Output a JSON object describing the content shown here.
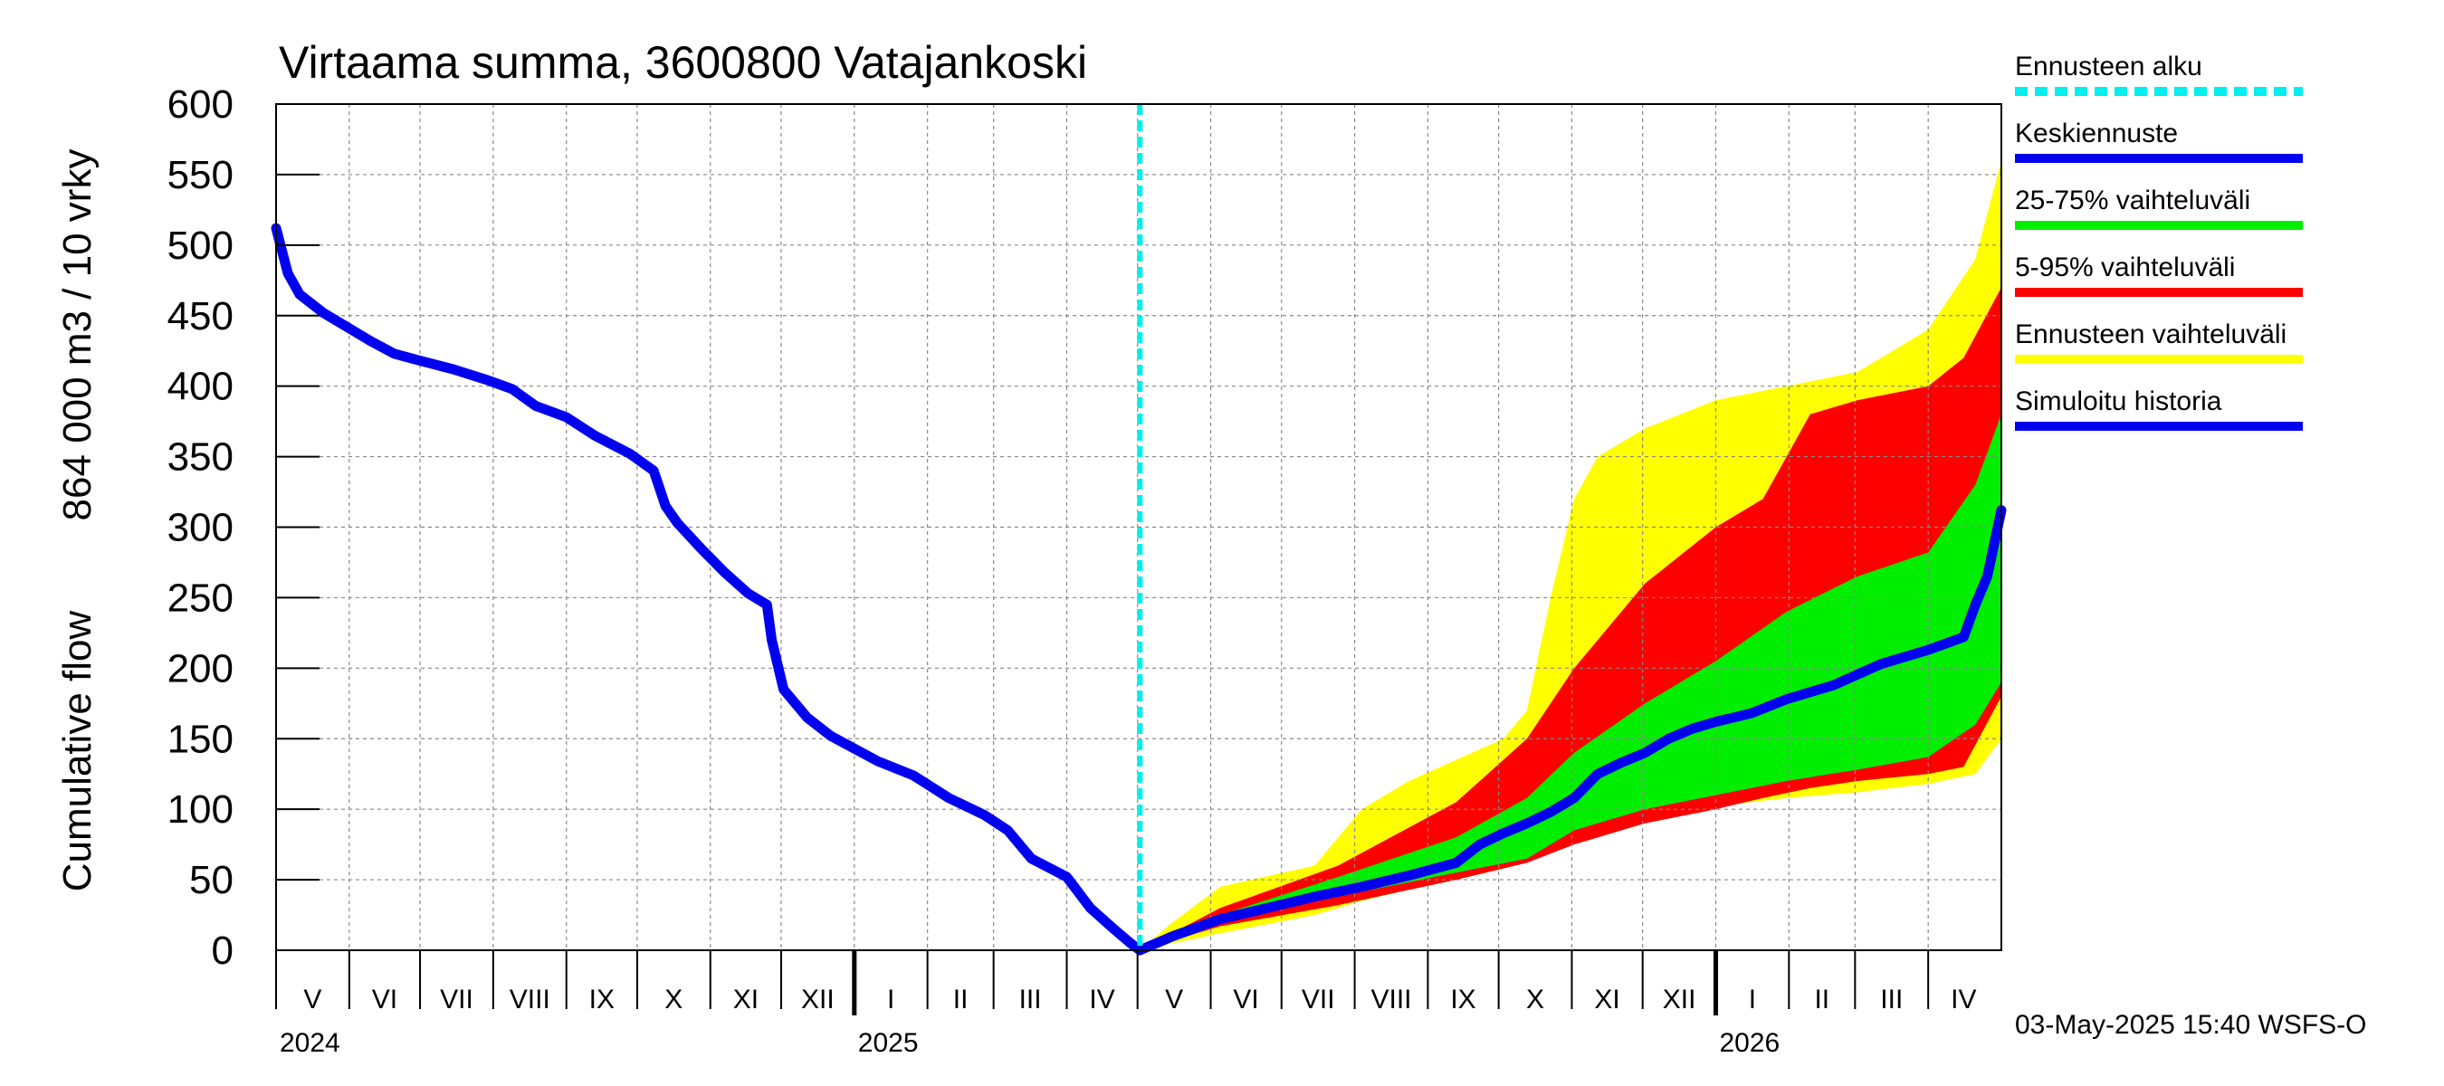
{
  "chart_data": {
    "type": "area",
    "title": "Virtaama summa, 3600800 Vatajankoski",
    "ylabel_lines": [
      "864 000 m3 / 10 vrky",
      "Cumulative flow"
    ],
    "ylim": [
      0,
      600
    ],
    "yticks": [
      0,
      50,
      100,
      150,
      200,
      250,
      300,
      350,
      400,
      450,
      500,
      550,
      600
    ],
    "x_unit": "days since 2024-04-30",
    "xlim": [
      0,
      731
    ],
    "forecast_start": 366,
    "grid": true,
    "legend_position": "right",
    "months": [
      {
        "label": "V",
        "start": 0,
        "end": 31
      },
      {
        "label": "VI",
        "start": 31,
        "end": 61
      },
      {
        "label": "VII",
        "start": 61,
        "end": 92
      },
      {
        "label": "VIII",
        "start": 92,
        "end": 123
      },
      {
        "label": "IX",
        "start": 123,
        "end": 153
      },
      {
        "label": "X",
        "start": 153,
        "end": 184
      },
      {
        "label": "XI",
        "start": 184,
        "end": 214
      },
      {
        "label": "XII",
        "start": 214,
        "end": 245
      },
      {
        "label": "I",
        "start": 245,
        "end": 276
      },
      {
        "label": "II",
        "start": 276,
        "end": 304
      },
      {
        "label": "III",
        "start": 304,
        "end": 335
      },
      {
        "label": "IV",
        "start": 335,
        "end": 365
      },
      {
        "label": "V",
        "start": 365,
        "end": 396
      },
      {
        "label": "VI",
        "start": 396,
        "end": 426
      },
      {
        "label": "VII",
        "start": 426,
        "end": 457
      },
      {
        "label": "VIII",
        "start": 457,
        "end": 488
      },
      {
        "label": "IX",
        "start": 488,
        "end": 518
      },
      {
        "label": "X",
        "start": 518,
        "end": 549
      },
      {
        "label": "XI",
        "start": 549,
        "end": 579
      },
      {
        "label": "XII",
        "start": 579,
        "end": 610
      },
      {
        "label": "I",
        "start": 610,
        "end": 641
      },
      {
        "label": "II",
        "start": 641,
        "end": 669
      },
      {
        "label": "III",
        "start": 669,
        "end": 700
      },
      {
        "label": "IV",
        "start": 700,
        "end": 730
      }
    ],
    "years": [
      {
        "label": "2024",
        "x": 0
      },
      {
        "label": "2025",
        "x": 245
      },
      {
        "label": "2026",
        "x": 610
      }
    ],
    "year_ticks": [
      245,
      610
    ],
    "series": [
      {
        "name": "Simuloitu historia",
        "color": "#0000ee",
        "kind": "line",
        "x": [
          0,
          5,
          10,
          20,
          30,
          40,
          50,
          61,
          75,
          90,
          100,
          110,
          123,
          135,
          150,
          160,
          165,
          170,
          180,
          190,
          200,
          208,
          210,
          215,
          225,
          235,
          245,
          255,
          270,
          285,
          300,
          310,
          320,
          335,
          345,
          355,
          362,
          366
        ],
        "y": [
          512,
          480,
          465,
          452,
          442,
          432,
          423,
          418,
          412,
          404,
          398,
          386,
          378,
          365,
          352,
          340,
          315,
          303,
          285,
          268,
          253,
          245,
          220,
          185,
          165,
          152,
          143,
          134,
          124,
          108,
          96,
          85,
          65,
          52,
          30,
          15,
          5,
          0
        ]
      },
      {
        "name": "Keskiennuste",
        "color": "#0000ee",
        "kind": "line",
        "x": [
          366,
          380,
          400,
          420,
          440,
          460,
          480,
          500,
          510,
          520,
          530,
          540,
          550,
          560,
          570,
          580,
          590,
          600,
          610,
          625,
          640,
          660,
          680,
          700,
          715,
          720,
          725,
          731
        ],
        "y": [
          0,
          10,
          22,
          30,
          38,
          45,
          53,
          62,
          75,
          83,
          90,
          98,
          108,
          125,
          133,
          140,
          150,
          157,
          162,
          168,
          178,
          188,
          203,
          213,
          222,
          245,
          265,
          312
        ]
      },
      {
        "name": "25-75% vaihteluväli",
        "color": "#00ee00",
        "kind": "band",
        "x": [
          366,
          400,
          450,
          500,
          530,
          550,
          580,
          610,
          640,
          670,
          700,
          720,
          731
        ],
        "low": [
          0,
          20,
          38,
          55,
          65,
          85,
          100,
          110,
          120,
          128,
          137,
          160,
          190
        ],
        "high": [
          0,
          25,
          52,
          80,
          108,
          140,
          175,
          205,
          240,
          265,
          282,
          330,
          380
        ]
      },
      {
        "name": "5-95% vaihteluväli",
        "color": "#ff0000",
        "kind": "band",
        "x": [
          366,
          400,
          450,
          500,
          530,
          550,
          580,
          610,
          630,
          650,
          670,
          700,
          715,
          731
        ],
        "low": [
          0,
          17,
          32,
          50,
          62,
          75,
          90,
          100,
          108,
          115,
          120,
          125,
          130,
          180
        ],
        "high": [
          0,
          30,
          60,
          105,
          150,
          200,
          260,
          300,
          320,
          380,
          390,
          400,
          420,
          470
        ]
      },
      {
        "name": "Ennusteen vaihteluväli",
        "color": "#ffff00",
        "kind": "band",
        "x": [
          366,
          380,
          400,
          440,
          460,
          480,
          500,
          520,
          530,
          540,
          550,
          560,
          580,
          610,
          640,
          670,
          700,
          720,
          731
        ],
        "low": [
          0,
          5,
          12,
          25,
          35,
          43,
          50,
          58,
          65,
          72,
          80,
          88,
          95,
          102,
          108,
          112,
          118,
          125,
          150
        ],
        "high": [
          0,
          20,
          45,
          60,
          100,
          120,
          135,
          150,
          170,
          250,
          320,
          350,
          370,
          390,
          400,
          410,
          440,
          490,
          560
        ]
      }
    ],
    "legend": [
      {
        "label": "Ennusteen alku",
        "color": "#00eeee",
        "dashed": true
      },
      {
        "label": "Keskiennuste",
        "color": "#0000ee",
        "dashed": false
      },
      {
        "label": "25-75% vaihteluväli",
        "color": "#00ee00",
        "dashed": false
      },
      {
        "label": "5-95% vaihteluväli",
        "color": "#ff0000",
        "dashed": false
      },
      {
        "label": "Ennusteen vaihteluväli",
        "color": "#ffff00",
        "dashed": false
      },
      {
        "label": "Simuloitu historia",
        "color": "#0000ee",
        "dashed": false
      }
    ],
    "timestamp": "03-May-2025 15:40 WSFS-O"
  }
}
